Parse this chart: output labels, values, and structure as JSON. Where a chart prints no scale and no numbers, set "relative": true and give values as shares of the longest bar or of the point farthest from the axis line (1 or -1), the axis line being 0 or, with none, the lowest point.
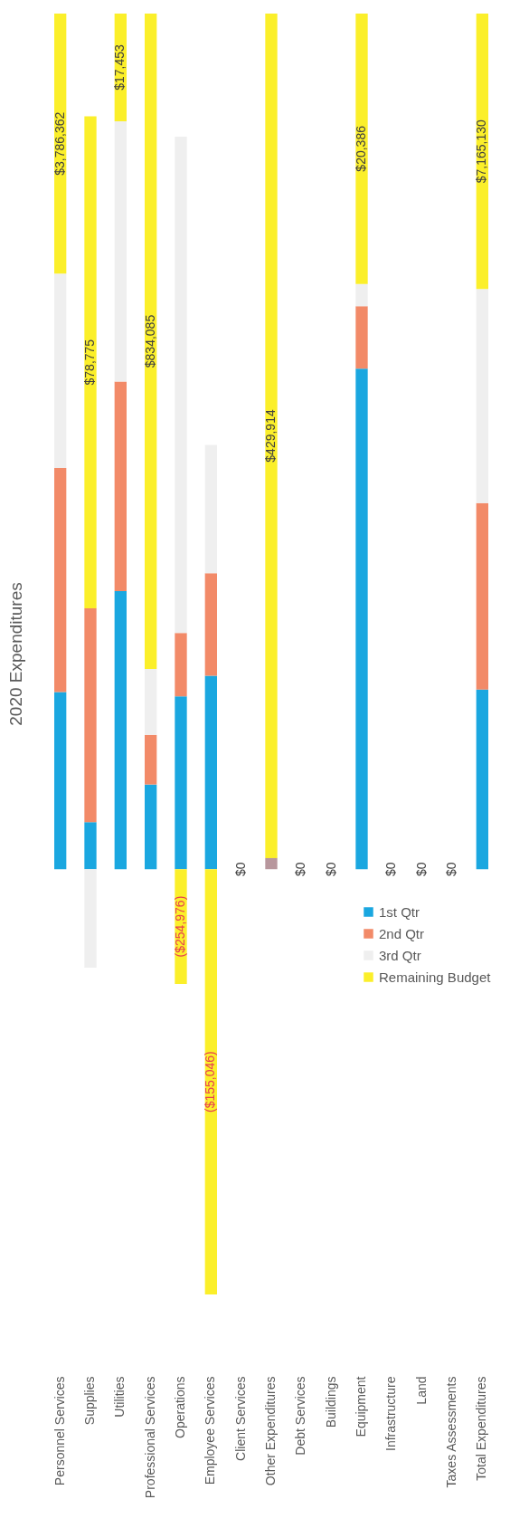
{
  "chart_data": {
    "type": "bar",
    "title": "2020 Expenditures",
    "categories": [
      "Personnel Services",
      "Supplies",
      "Utilities",
      "Professional Services",
      "Operations",
      "Employee Services",
      "Client Services",
      "Other Expenditures",
      "Debt Services",
      "Buildings",
      "Equipment",
      "Infrastructure",
      "Land",
      "Taxes Assessments",
      "Total Expenditures"
    ],
    "stacked": true,
    "relative": true,
    "legend": "bottom right",
    "series": [
      {
        "name": "1st Qtr",
        "color": "#1aa7e0",
        "values": [
          0.207,
          0.055,
          0.325,
          0.099,
          0.202,
          0.226,
          0,
          0,
          0,
          0,
          0.585,
          0,
          0,
          0,
          0.21
        ]
      },
      {
        "name": "2nd Qtr",
        "color": "#f28a68",
        "values": [
          0.262,
          0.25,
          0.245,
          0.058,
          0.074,
          0.12,
          0,
          0,
          0,
          0,
          0.073,
          0,
          0,
          0,
          0.218
        ]
      },
      {
        "name": "3rd Qtr",
        "color": "#efefef",
        "colors": [
          "#efefef",
          "#efefef",
          "#efefef",
          "#efefef",
          "#efefef",
          "#efefef",
          "#efefef",
          "#b8979d",
          "#efefef",
          "#efefef",
          "#efefef",
          "#efefef",
          "#efefef",
          "#efefef",
          "#efefef"
        ],
        "values": [
          0.227,
          -0.115,
          0.304,
          0.077,
          0.58,
          0.15,
          0,
          0.013,
          0,
          0,
          0.026,
          0,
          0,
          0,
          0.25
        ]
      },
      {
        "name": "Remaining Budget",
        "color": "#fbef2a",
        "values": [
          0.304,
          0.575,
          0.126,
          0.766,
          -0.134,
          -0.497,
          0,
          0.987,
          0,
          0,
          0.316,
          0,
          0,
          0,
          0.322
        ]
      }
    ],
    "annotations": [
      "$3,786,362",
      "$78,775",
      "$17,453",
      "$834,085",
      "($254,976)",
      "($155,046)",
      "$0",
      "$429,914",
      "$0",
      "$0",
      "$20,386",
      "$0",
      "$0",
      "$0",
      "$7,165,130"
    ]
  }
}
